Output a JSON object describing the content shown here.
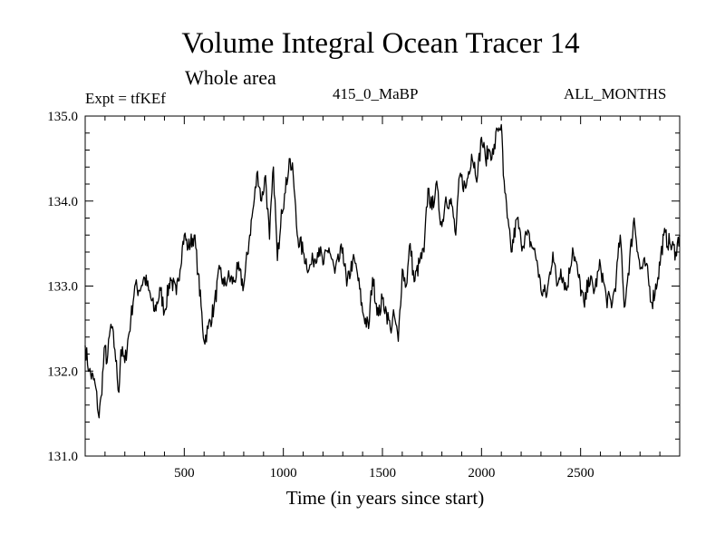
{
  "header": {
    "title": "Volume Integral Ocean Tracer 14",
    "subtitle": "Whole area",
    "experiment": "Expt = tfKEf",
    "period": "415_0_MaBP",
    "months": "ALL_MONTHS"
  },
  "chart_data": {
    "type": "line",
    "title": "Volume Integral Ocean Tracer 14",
    "subtitle": "Whole area",
    "xlabel": "Time (in years since start)",
    "ylabel": "",
    "xlim": [
      0,
      3000
    ],
    "ylim": [
      131.0,
      135.0
    ],
    "x_ticks": [
      500,
      1000,
      1500,
      2000,
      2500
    ],
    "y_ticks": [
      131.0,
      132.0,
      133.0,
      134.0,
      135.0
    ],
    "y_tick_labels": [
      "131.0",
      "132.0",
      "133.0",
      "134.0",
      "135.0"
    ],
    "grid": false,
    "series": [
      {
        "x": [
          0,
          20,
          50,
          70,
          80,
          100,
          110,
          130,
          150,
          170,
          180,
          200,
          230,
          250,
          270,
          300,
          320,
          350,
          380,
          400,
          430,
          460,
          490,
          500,
          520,
          550,
          570,
          600,
          620,
          650,
          680,
          700,
          720,
          750,
          770,
          800,
          830,
          850,
          870,
          890,
          910,
          930,
          950,
          970,
          990,
          1010,
          1030,
          1050,
          1070,
          1100,
          1130,
          1150,
          1180,
          1200,
          1230,
          1260,
          1300,
          1320,
          1350,
          1370,
          1400,
          1430,
          1450,
          1480,
          1500,
          1520,
          1540,
          1560,
          1580,
          1600,
          1620,
          1640,
          1660,
          1690,
          1710,
          1730,
          1750,
          1770,
          1800,
          1820,
          1850,
          1870,
          1890,
          1920,
          1950,
          1980,
          2000,
          2020,
          2040,
          2060,
          2080,
          2100,
          2110,
          2130,
          2150,
          2180,
          2200,
          2230,
          2260,
          2280,
          2300,
          2330,
          2360,
          2380,
          2400,
          2430,
          2460,
          2490,
          2520,
          2540,
          2570,
          2600,
          2630,
          2660,
          2680,
          2700,
          2720,
          2740,
          2770,
          2800,
          2830,
          2860,
          2890,
          2920,
          2950,
          2980,
          3000
        ],
        "values": [
          132.3,
          132.0,
          131.85,
          131.45,
          131.7,
          132.3,
          132.1,
          132.55,
          132.25,
          131.75,
          132.25,
          132.1,
          132.6,
          133.0,
          132.95,
          133.1,
          132.95,
          132.7,
          132.95,
          132.7,
          133.1,
          132.9,
          133.45,
          133.6,
          133.45,
          133.6,
          133.15,
          132.35,
          132.5,
          132.75,
          133.2,
          133.0,
          133.1,
          133.05,
          133.2,
          133.0,
          133.6,
          133.95,
          134.35,
          134.0,
          134.3,
          133.55,
          134.4,
          133.3,
          133.9,
          134.1,
          134.5,
          134.3,
          133.6,
          133.4,
          133.2,
          133.3,
          133.45,
          133.25,
          133.45,
          133.15,
          133.45,
          133.0,
          133.3,
          133.2,
          132.7,
          132.5,
          133.1,
          132.65,
          132.85,
          132.7,
          132.5,
          132.65,
          132.35,
          133.2,
          133.0,
          133.5,
          133.05,
          133.3,
          133.4,
          134.15,
          133.9,
          134.2,
          133.7,
          134.05,
          133.95,
          133.6,
          134.3,
          134.15,
          134.55,
          134.3,
          134.75,
          134.5,
          134.6,
          134.55,
          134.85,
          134.9,
          134.3,
          133.8,
          133.4,
          133.8,
          133.5,
          133.6,
          133.45,
          133.3,
          132.95,
          132.9,
          133.4,
          133.0,
          133.2,
          132.95,
          133.45,
          133.1,
          132.75,
          133.1,
          132.95,
          133.25,
          132.85,
          132.8,
          133.1,
          133.6,
          132.75,
          133.15,
          133.8,
          133.2,
          133.25,
          132.8,
          133.1,
          133.6,
          133.5,
          133.4,
          133.6
        ]
      }
    ]
  }
}
